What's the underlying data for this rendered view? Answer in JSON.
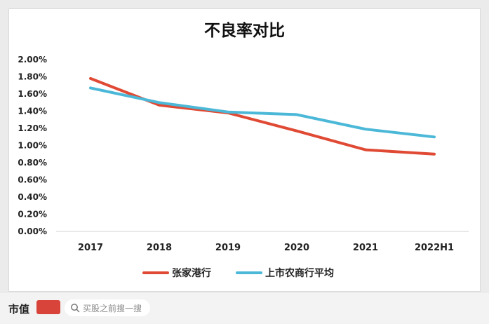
{
  "chart_data": {
    "type": "line",
    "title": "不良率对比",
    "categories": [
      "2017",
      "2018",
      "2019",
      "2020",
      "2021",
      "2022H1"
    ],
    "yticks": [
      "0.00%",
      "0.20%",
      "0.40%",
      "0.60%",
      "0.80%",
      "1.00%",
      "1.20%",
      "1.40%",
      "1.60%",
      "1.80%",
      "2.00%"
    ],
    "ylim": [
      0,
      2.0
    ],
    "series": [
      {
        "name": "张家港行",
        "color": "#e04a34",
        "values": [
          1.78,
          1.47,
          1.38,
          1.17,
          0.95,
          0.9
        ]
      },
      {
        "name": "上市农商行平均",
        "color": "#4bb8d8",
        "values": [
          1.67,
          1.5,
          1.39,
          1.36,
          1.19,
          1.1
        ]
      }
    ],
    "legend_position": "bottom",
    "grid": false
  },
  "footer": {
    "brand": "市值",
    "search_placeholder": "买股之前搜一搜"
  }
}
